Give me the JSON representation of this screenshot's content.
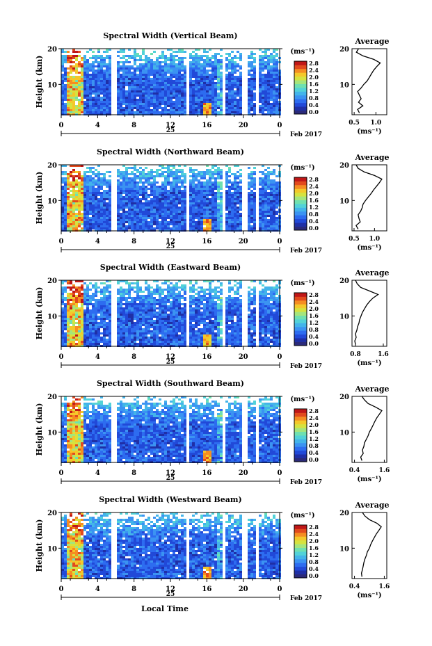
{
  "figure": {
    "xlabel": "Local Time",
    "date_label": "Feb 2017",
    "cbar_unit": "(ms⁻¹)",
    "avg_title": "Average",
    "avg_xlabel": "(ms⁻¹)",
    "ylabel": "Height (km)"
  },
  "colorscale": [
    "#2b2a7a",
    "#1f2fa6",
    "#2149d8",
    "#2d6cf0",
    "#3b93f2",
    "#43b4ea",
    "#52d2d8",
    "#6fe0b0",
    "#a5e57c",
    "#d6e23f",
    "#f4c82a",
    "#f58d22",
    "#e24a1d",
    "#c01717"
  ],
  "panels": [
    {
      "title": "Spectral Width (Vertical Beam)",
      "avg_ticks": [
        "0.5",
        "1.0"
      ]
    },
    {
      "title": "Spectral Width (Northward Beam)",
      "avg_ticks": [
        "0.5",
        "1.0"
      ]
    },
    {
      "title": "Spectral Width (Eastward Beam)",
      "avg_ticks": [
        "0.8",
        "1.6"
      ]
    },
    {
      "title": "Spectral Width (Southward Beam)",
      "avg_ticks": [
        "0.4",
        "1.6"
      ]
    },
    {
      "title": "Spectral Width (Westward Beam)",
      "avg_ticks": [
        "0.4",
        "1.6"
      ]
    }
  ],
  "chart_data": [
    {
      "type": "heatmap",
      "title": "Spectral Width (Vertical Beam)",
      "xlabel": "",
      "ylabel": "Height (km)",
      "xlim": [
        0,
        24
      ],
      "ylim": [
        1.5,
        20
      ],
      "x_ticks": [
        "0",
        "4",
        "8",
        "12",
        "16",
        "20",
        "0"
      ],
      "x_tick_values": [
        0,
        4,
        8,
        12,
        16,
        20,
        24
      ],
      "day_label": "25",
      "y_ticks": [
        10,
        20
      ],
      "colorbar": {
        "label": "(ms⁻¹)",
        "range": [
          0,
          2.8
        ],
        "ticks": [
          "0.0",
          "0.4",
          "0.8",
          "1.2",
          "1.6",
          "2.0",
          "2.4",
          "2.8"
        ]
      },
      "data_gaps_hours": [
        5.8,
        13.9,
        17.8,
        20.2,
        21.6
      ],
      "average_profile": {
        "title": "Average",
        "xlabel": "(ms⁻¹)",
        "xlim": [
          0.45,
          1.25
        ],
        "x_ticks": [
          "0.5",
          "1.0"
        ],
        "height": [
          2,
          3,
          4,
          5,
          6,
          7,
          8,
          9,
          10,
          11,
          12,
          13,
          14,
          15,
          16,
          17,
          18,
          19,
          20
        ],
        "value": [
          0.62,
          0.58,
          0.7,
          0.6,
          0.66,
          0.62,
          0.58,
          0.66,
          0.72,
          0.8,
          0.85,
          0.9,
          0.95,
          1.02,
          1.1,
          0.95,
          0.7,
          0.55,
          0.6
        ]
      }
    },
    {
      "type": "heatmap",
      "title": "Spectral Width (Northward Beam)",
      "xlabel": "",
      "ylabel": "Height (km)",
      "xlim": [
        0,
        24
      ],
      "ylim": [
        1.5,
        20
      ],
      "x_ticks": [
        "0",
        "4",
        "8",
        "12",
        "16",
        "20",
        "0"
      ],
      "x_tick_values": [
        0,
        4,
        8,
        12,
        16,
        20,
        24
      ],
      "day_label": "25",
      "y_ticks": [
        10,
        20
      ],
      "colorbar": {
        "label": "(ms⁻¹)",
        "range": [
          0,
          2.8
        ],
        "ticks": [
          "0.0",
          "0.4",
          "0.8",
          "1.2",
          "1.6",
          "2.0",
          "2.4",
          "2.8"
        ]
      },
      "data_gaps_hours": [
        5.8,
        13.9,
        17.8,
        20.2,
        21.6
      ],
      "average_profile": {
        "title": "Average",
        "xlabel": "(ms⁻¹)",
        "xlim": [
          0.45,
          1.3
        ],
        "x_ticks": [
          "0.5",
          "1.0"
        ],
        "height": [
          2,
          3,
          4,
          5,
          6,
          7,
          8,
          9,
          10,
          11,
          12,
          13,
          14,
          15,
          16,
          17,
          18,
          19,
          20
        ],
        "value": [
          0.6,
          0.55,
          0.65,
          0.62,
          0.6,
          0.66,
          0.7,
          0.72,
          0.78,
          0.85,
          0.92,
          0.98,
          1.05,
          1.12,
          1.18,
          1.0,
          0.75,
          0.6,
          0.55
        ]
      }
    },
    {
      "type": "heatmap",
      "title": "Spectral Width (Eastward Beam)",
      "xlabel": "",
      "ylabel": "",
      "xlim": [
        0,
        24
      ],
      "ylim": [
        1.5,
        20
      ],
      "x_ticks": [
        "0",
        "4",
        "8",
        "12",
        "16",
        "20",
        "0"
      ],
      "x_tick_values": [
        0,
        4,
        8,
        12,
        16,
        20,
        24
      ],
      "day_label": "25",
      "y_ticks": [
        10,
        20
      ],
      "colorbar": {
        "label": "(ms⁻¹)",
        "range": [
          0,
          2.8
        ],
        "ticks": [
          "0.0",
          "0.4",
          "0.8",
          "1.2",
          "1.6",
          "2.0",
          "2.4",
          "2.8"
        ]
      },
      "data_gaps_hours": [
        5.8,
        13.9,
        17.8,
        20.2,
        21.6
      ],
      "average_profile": {
        "title": "Average",
        "xlabel": "(ms⁻¹)",
        "xlim": [
          0.7,
          1.7
        ],
        "x_ticks": [
          "0.8",
          "1.6"
        ],
        "height": [
          2,
          3,
          4,
          5,
          6,
          7,
          8,
          9,
          10,
          11,
          12,
          13,
          14,
          15,
          16,
          17,
          18,
          19,
          20
        ],
        "value": [
          0.8,
          0.78,
          0.82,
          0.8,
          0.84,
          0.86,
          0.9,
          0.92,
          0.96,
          1.0,
          1.06,
          1.12,
          1.2,
          1.3,
          1.45,
          1.2,
          0.95,
          0.85,
          0.8
        ]
      }
    },
    {
      "type": "heatmap",
      "title": "Spectral Width (Southward Beam)",
      "xlabel": "",
      "ylabel": "Height (km)",
      "xlim": [
        0,
        24
      ],
      "ylim": [
        1.5,
        20
      ],
      "x_ticks": [
        "0",
        "4",
        "8",
        "12",
        "16",
        "20",
        "0"
      ],
      "x_tick_values": [
        0,
        4,
        8,
        12,
        16,
        20,
        24
      ],
      "day_label": "25",
      "y_ticks": [
        10,
        20
      ],
      "colorbar": {
        "label": "(ms⁻¹)",
        "range": [
          0,
          2.8
        ],
        "ticks": [
          "0.0",
          "0.4",
          "0.8",
          "1.2",
          "1.6",
          "2.0",
          "2.4",
          "2.8"
        ]
      },
      "data_gaps_hours": [
        5.8,
        13.9,
        17.8,
        20.2,
        21.6
      ],
      "average_profile": {
        "title": "Average",
        "xlabel": "(ms⁻¹)",
        "xlim": [
          0.3,
          1.7
        ],
        "x_ticks": [
          "0.4",
          "1.6"
        ],
        "height": [
          2,
          3,
          4,
          5,
          6,
          7,
          8,
          9,
          10,
          11,
          12,
          13,
          14,
          15,
          16,
          17,
          18,
          19,
          20
        ],
        "value": [
          0.7,
          0.65,
          0.75,
          0.72,
          0.78,
          0.8,
          0.88,
          0.95,
          1.0,
          1.08,
          1.15,
          1.22,
          1.3,
          1.4,
          1.5,
          1.25,
          0.95,
          0.8,
          0.7
        ]
      }
    },
    {
      "type": "heatmap",
      "title": "Spectral Width (Westward Beam)",
      "xlabel": "Local Time",
      "ylabel": "Height (km)",
      "xlim": [
        0,
        24
      ],
      "ylim": [
        1.5,
        20
      ],
      "x_ticks": [
        "0",
        "4",
        "8",
        "12",
        "16",
        "20",
        "0"
      ],
      "x_tick_values": [
        0,
        4,
        8,
        12,
        16,
        20,
        24
      ],
      "day_label": "25",
      "y_ticks": [
        10,
        20
      ],
      "colorbar": {
        "label": "(ms⁻¹)",
        "range": [
          0,
          2.8
        ],
        "ticks": [
          "0.0",
          "0.4",
          "0.8",
          "1.2",
          "1.6",
          "2.0",
          "2.4",
          "2.8"
        ]
      },
      "data_gaps_hours": [
        5.8,
        13.9,
        17.8,
        20.2,
        21.6
      ],
      "average_profile": {
        "title": "Average",
        "xlabel": "(ms⁻¹)",
        "xlim": [
          0.3,
          1.7
        ],
        "x_ticks": [
          "0.4",
          "1.6"
        ],
        "height": [
          2,
          3,
          4,
          5,
          6,
          7,
          8,
          9,
          10,
          11,
          12,
          13,
          14,
          15,
          16,
          17,
          18,
          19,
          20
        ],
        "value": [
          0.7,
          0.68,
          0.72,
          0.75,
          0.78,
          0.82,
          0.88,
          0.92,
          1.0,
          1.05,
          1.12,
          1.2,
          1.28,
          1.38,
          1.48,
          1.3,
          1.0,
          0.82,
          0.72
        ]
      }
    }
  ]
}
